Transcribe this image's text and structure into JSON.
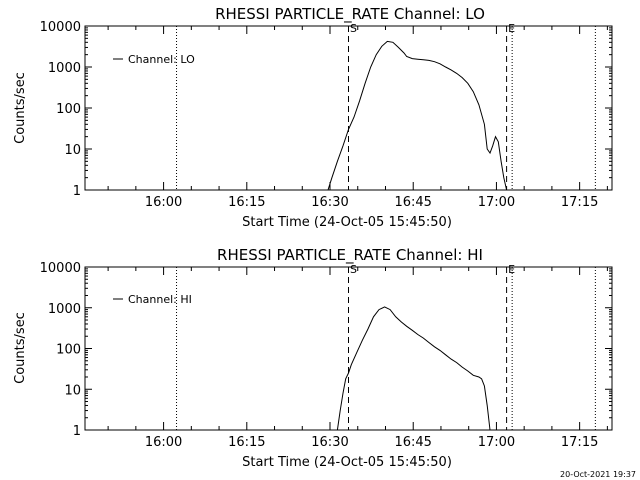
{
  "timestamp": "20-Oct-2021 19:37",
  "chart_data": [
    {
      "type": "line",
      "title": "RHESSI PARTICLE_RATE Channel: LO",
      "xlabel": "Start Time (24-Oct-05 15:45:50)",
      "ylabel": "Counts/sec",
      "x_unit": "minutes since 15:45:50",
      "xlim": [
        0,
        95
      ],
      "ylim": [
        1,
        10000
      ],
      "yscale": "log",
      "xticks": [
        "16:00",
        "16:15",
        "16:30",
        "16:45",
        "17:00",
        "17:15"
      ],
      "yticks": [
        "1",
        "10",
        "100",
        "1000",
        "10000"
      ],
      "legend": {
        "position": "top-left",
        "entries": [
          "Channel: LO"
        ]
      },
      "markers": [
        {
          "label": "S",
          "x": 47.5,
          "style": "dashed"
        },
        {
          "label": "E",
          "x": 76.0,
          "style": "dashed"
        }
      ],
      "dotted_lines": [
        16.5,
        77.0,
        92.0
      ],
      "series": [
        {
          "name": "Channel: LO",
          "x": [
            43.8,
            44.5,
            45.5,
            46.5,
            47.5,
            48.5,
            49.5,
            50.5,
            51.5,
            52.5,
            53.5,
            54.5,
            55.5,
            56.5,
            57.5,
            58.0,
            59.0,
            60.0,
            61.0,
            62.0,
            63.0,
            64.0,
            65.0,
            66.0,
            67.0,
            68.0,
            69.0,
            70.0,
            71.0,
            72.0,
            72.5,
            73.0,
            73.5,
            74.0,
            74.5,
            75.0,
            75.5,
            76.0
          ],
          "y": [
            1,
            2,
            5,
            12,
            30,
            60,
            150,
            400,
            1000,
            2000,
            3200,
            4200,
            4000,
            3000,
            2200,
            1800,
            1600,
            1550,
            1500,
            1450,
            1350,
            1200,
            1000,
            850,
            700,
            550,
            400,
            250,
            120,
            40,
            10,
            8,
            12,
            20,
            15,
            5,
            2,
            1
          ]
        }
      ]
    },
    {
      "type": "line",
      "title": "RHESSI PARTICLE_RATE Channel: HI",
      "xlabel": "Start Time (24-Oct-05 15:45:50)",
      "ylabel": "Counts/sec",
      "x_unit": "minutes since 15:45:50",
      "xlim": [
        0,
        95
      ],
      "ylim": [
        1,
        10000
      ],
      "yscale": "log",
      "xticks": [
        "16:00",
        "16:15",
        "16:30",
        "16:45",
        "17:00",
        "17:15"
      ],
      "yticks": [
        "1",
        "10",
        "100",
        "1000",
        "10000"
      ],
      "legend": {
        "position": "top-left",
        "entries": [
          "Channel: HI"
        ]
      },
      "markers": [
        {
          "label": "S",
          "x": 47.5,
          "style": "dashed"
        },
        {
          "label": "E",
          "x": 76.0,
          "style": "dashed"
        }
      ],
      "dotted_lines": [
        16.5,
        77.0,
        92.0
      ],
      "series": [
        {
          "name": "Channel: HI",
          "x": [
            45.5,
            46.0,
            46.5,
            47.0,
            47.5,
            48.0,
            49.0,
            50.0,
            51.0,
            52.0,
            53.0,
            54.0,
            55.0,
            56.0,
            57.0,
            58.0,
            59.0,
            60.0,
            61.0,
            62.0,
            63.0,
            64.0,
            65.0,
            66.0,
            67.0,
            68.0,
            69.0,
            70.0,
            71.0,
            71.5,
            72.0,
            72.5,
            73.0
          ],
          "y": [
            1,
            3,
            8,
            18,
            25,
            40,
            80,
            160,
            300,
            600,
            900,
            1050,
            900,
            600,
            450,
            350,
            280,
            220,
            180,
            140,
            110,
            90,
            70,
            55,
            45,
            35,
            28,
            22,
            20,
            18,
            12,
            4,
            1
          ]
        }
      ]
    }
  ]
}
